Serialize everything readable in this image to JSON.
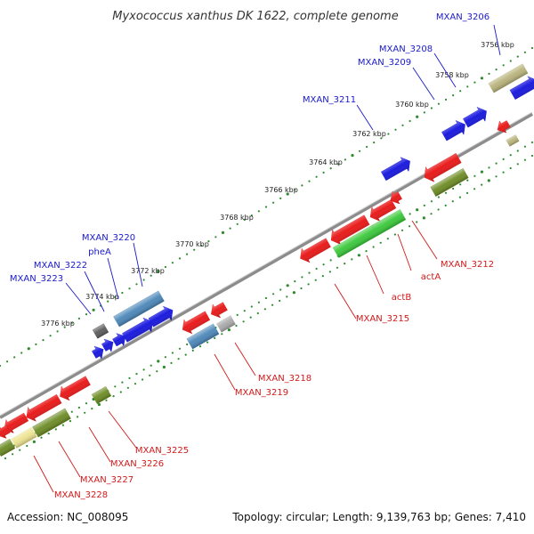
{
  "title": "Myxococcus xanthus DK 1622, complete genome",
  "footer": {
    "accession": "Accession: NC_008095",
    "summary": "Topology: circular; Length: 9,139,763 bp; Genes: 7,410"
  },
  "colors": {
    "background": "#ffffff",
    "backbone": "#8c8c8c",
    "tick_dot": "#2e8b2e",
    "label_forward": "#1a1acc",
    "label_reverse": "#d11a1a",
    "gene_red": "#e81212",
    "gene_blue": "#1212dd",
    "gene_green": "#38c838",
    "gene_steelblue": "#4a86b8",
    "gene_olive": "#6b8a22",
    "gene_khaki": "#b8b27a",
    "gene_paleyellow": "#ece28e",
    "gene_gray": "#a8a8a8",
    "gene_darkgray": "#5a5a5a"
  },
  "scale_labels": [
    "3756 kbp",
    "3758 kbp",
    "3760 kbp",
    "3762 kbp",
    "3764 kbp",
    "3766 kbp",
    "3768 kbp",
    "3770 kbp",
    "3772 kbp",
    "3774 kbp",
    "3776 kbp"
  ],
  "gene_labels_forward": [
    "MXAN_3206",
    "MXAN_3208",
    "MXAN_3209",
    "MXAN_3211",
    "MXAN_3220",
    "pheA",
    "MXAN_3222",
    "MXAN_3223"
  ],
  "gene_labels_reverse": [
    "MXAN_3212",
    "actA",
    "actB",
    "MXAN_3215",
    "MXAN_3218",
    "MXAN_3219",
    "MXAN_3225",
    "MXAN_3226",
    "MXAN_3227",
    "MXAN_3228"
  ]
}
